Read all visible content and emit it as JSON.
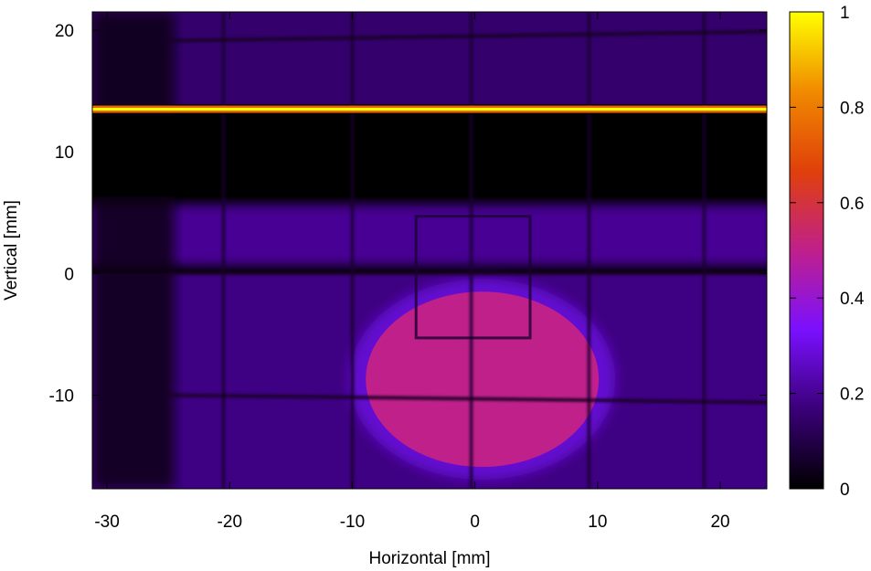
{
  "chart_data": {
    "type": "heatmap",
    "title": "",
    "xlabel": "Horizontal [mm]",
    "ylabel": "Vertical [mm]",
    "xlim": [
      -31.2,
      23.8
    ],
    "ylim": [
      -17.7,
      21.5
    ],
    "xticks": [
      -30,
      -20,
      -10,
      0,
      10,
      20
    ],
    "yticks": [
      -10,
      0,
      10,
      20
    ],
    "colorbar": {
      "range": [
        0,
        1
      ],
      "ticks": [
        0,
        0.2,
        0.4,
        0.6,
        0.8,
        1
      ],
      "tick_labels": [
        "0",
        "0.2",
        "0.4",
        "0.6",
        "0.8",
        "1"
      ],
      "colormap": [
        "#000000",
        "#3a0078",
        "#7a10ff",
        "#c0208a",
        "#e0400a",
        "#f08a00",
        "#ffff00"
      ]
    },
    "intensity_map": {
      "background_band_upper": {
        "y_range": [
          13.9,
          21.5
        ],
        "level": 0.15
      },
      "bright_line": {
        "y": 13.5,
        "level": 1.0
      },
      "dark_band": {
        "y_range": [
          6.3,
          13.0
        ],
        "level": 0.0
      },
      "band_middle": {
        "y_range": [
          0.6,
          5.7
        ],
        "level": 0.2
      },
      "lower_region": {
        "y_range": [
          -17.7,
          0.0
        ],
        "level": 0.18
      },
      "hot_spot": {
        "center": [
          0.6,
          -8.7
        ],
        "radius_x": 9.5,
        "radius_y": 7.2,
        "level": 0.5
      },
      "dark_left_strip": {
        "x_range": [
          -31.2,
          -24.5
        ],
        "level": 0.03
      },
      "grid_lines_x": [
        -20.5,
        -10.0,
        -0.3,
        9.3,
        18.7
      ],
      "grid_lines_y": [
        19.5,
        0.0,
        -10.3
      ],
      "inner_frame": {
        "x_range": [
          -4.8,
          4.5
        ],
        "y_range": [
          -5.3,
          4.7
        ]
      }
    }
  }
}
